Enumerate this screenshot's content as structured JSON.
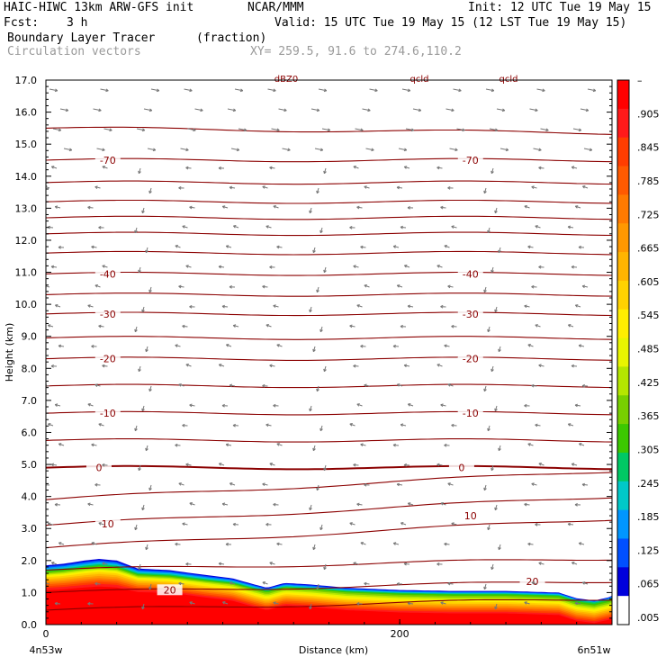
{
  "header": {
    "model": "HAIC-HIWC 13km ARW-GFS init",
    "org": "NCAR/MMM",
    "init": "Init: 12 UTC Tue 19 May 15",
    "fcst_label": "Fcst:",
    "fcst_value": "3 h",
    "valid": "Valid: 15 UTC Tue 19 May 15 (12 LST Tue 19 May 15)",
    "field1_name": "Boundary Layer Tracer",
    "field1_unit": "(fraction)",
    "field2_name": "Circulation vectors",
    "xy": "XY= 259.5, 91.6 to 274.6,110.2"
  },
  "chart_data": {
    "type": "cross-section",
    "ylabel": "Height (km)",
    "xlabel": "Distance (km)",
    "ylim": [
      0,
      17
    ],
    "xlim": [
      0,
      320
    ],
    "y_ticks": [
      "0.0",
      "1.0",
      "2.0",
      "3.0",
      "4.0",
      "5.0",
      "6.0",
      "7.0",
      "8.0",
      "9.0",
      "10.0",
      "11.0",
      "12.0",
      "13.0",
      "14.0",
      "15.0",
      "16.0",
      "17.0"
    ],
    "x_ticks": [
      "0",
      "200"
    ],
    "x_tick_values": [
      0,
      200
    ],
    "left_endpoint": "4n53w",
    "right_endpoint": "6n51w",
    "top_partial_labels": [
      "dBZ0",
      "qcld",
      "qcld"
    ],
    "colorbar": {
      "labels": [
        "–",
        ".905",
        ".845",
        ".785",
        ".725",
        ".665",
        ".605",
        ".545",
        ".485",
        ".425",
        ".365",
        ".305",
        ".245",
        ".185",
        ".125",
        ".065",
        ".005"
      ],
      "colors": [
        "#ff0000",
        "#ff1a1a",
        "#ff3d00",
        "#ff5a00",
        "#ff7a00",
        "#ff9800",
        "#ffb400",
        "#ffd200",
        "#ffee00",
        "#e8f500",
        "#b4e600",
        "#78d000",
        "#3cc800",
        "#00c864",
        "#00c8c8",
        "#0096ff",
        "#0050ff",
        "#0000dc",
        "#ffffff"
      ]
    },
    "temperature_contours": [
      {
        "label": "-70",
        "y": 14.5
      },
      {
        "label": "-40",
        "y": 10.95
      },
      {
        "label": "-30",
        "y": 9.7
      },
      {
        "label": "-20",
        "y": 8.3
      },
      {
        "label": "-10",
        "y": 6.6
      },
      {
        "label": "0",
        "y": 4.9
      },
      {
        "label": "10",
        "y": 3.1
      },
      {
        "label": "20",
        "y": 1.0
      }
    ],
    "tracer_top_km": [
      [
        0,
        1.85
      ],
      [
        10,
        1.9
      ],
      [
        22,
        2.0
      ],
      [
        30,
        2.05
      ],
      [
        40,
        2.0
      ],
      [
        52,
        1.75
      ],
      [
        70,
        1.7
      ],
      [
        90,
        1.55
      ],
      [
        105,
        1.45
      ],
      [
        118,
        1.25
      ],
      [
        125,
        1.15
      ],
      [
        135,
        1.3
      ],
      [
        150,
        1.25
      ],
      [
        170,
        1.15
      ],
      [
        200,
        1.08
      ],
      [
        230,
        1.05
      ],
      [
        260,
        1.05
      ],
      [
        290,
        1.0
      ],
      [
        300,
        0.82
      ],
      [
        310,
        0.75
      ],
      [
        318,
        0.85
      ],
      [
        320,
        0.9
      ]
    ]
  }
}
